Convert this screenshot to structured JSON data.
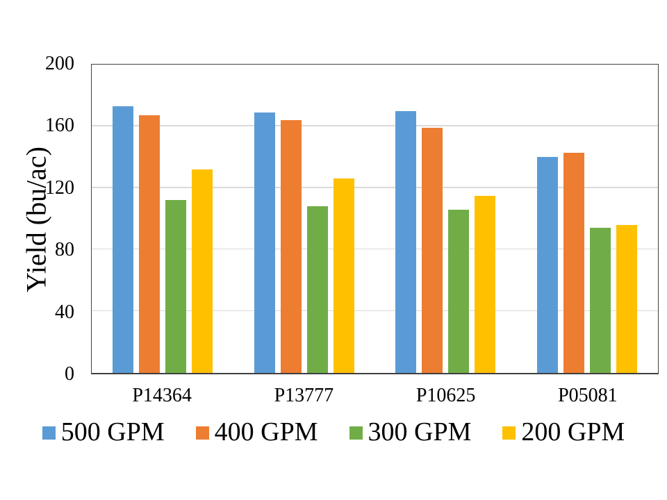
{
  "chart_data": {
    "type": "bar",
    "title": "",
    "xlabel": "",
    "ylabel": "Yield (bu/ac)",
    "ylim": [
      0,
      200
    ],
    "yticks": [
      0,
      40,
      80,
      120,
      160,
      200
    ],
    "grid": "horizontal",
    "legend_position": "bottom",
    "categories": [
      "P14364",
      "P13777",
      "P10625",
      "P05081"
    ],
    "series": [
      {
        "name": "500 GPM",
        "color": "#5B9BD5",
        "values": [
          173,
          169,
          170,
          140
        ]
      },
      {
        "name": "400 GPM",
        "color": "#ED7D31",
        "values": [
          167,
          164,
          159,
          143
        ]
      },
      {
        "name": "300 GPM",
        "color": "#70AD47",
        "values": [
          112,
          108,
          106,
          94
        ]
      },
      {
        "name": "200 GPM",
        "color": "#FFC000",
        "values": [
          132,
          126,
          115,
          96
        ]
      }
    ],
    "colors": {
      "background": "#FFFFFF",
      "gridline": "#D9D9D9",
      "axis_border": "#404040",
      "text": "#000000"
    }
  }
}
